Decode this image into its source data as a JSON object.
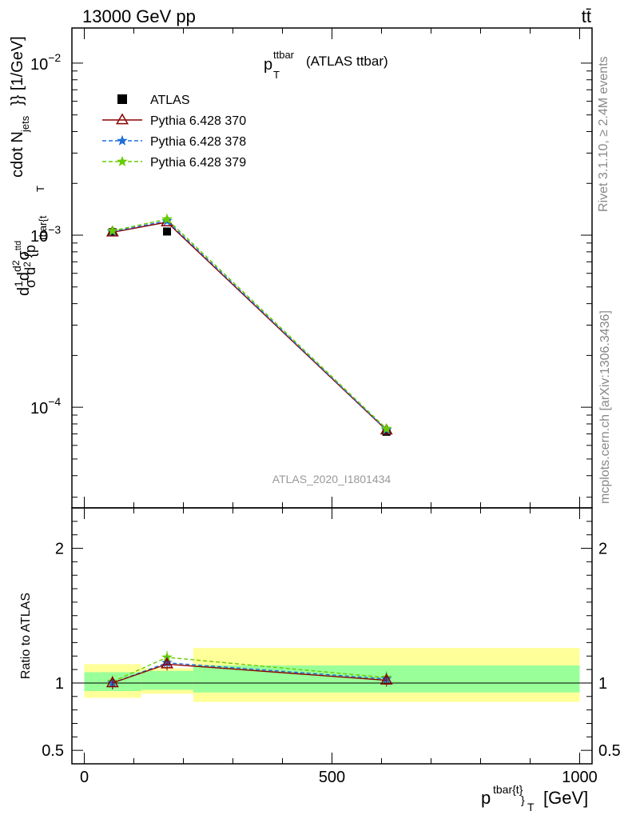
{
  "header": {
    "left": "13000 GeV pp",
    "right": "tt̄"
  },
  "side_text": {
    "rivet": "Rivet 3.1.10, ≥ 2.4M events",
    "mcplots": "mcplots.cern.ch [arXiv:1306.3436]"
  },
  "chart_data": {
    "type": "line",
    "title": "p_T^ttbar (ATLAS ttbar)",
    "title_main": "p",
    "title_sub": "T",
    "title_sup": "ttbar",
    "title_rest": "(ATLAS ttbar)",
    "analysis_label": "ATLAS_2020_I1801434",
    "xlabel": "p^{tbar{t}}_T [GeV]",
    "xlabel_main": "p",
    "xlabel_sup": "tbar{t}",
    "xlabel_sub": "}",
    "xlabel_subT": "T",
    "xlabel_unit": "[GeV]",
    "ylabel_main": "dσ/dp_T [1/GeV] (rendered as garbled TeX: 1/σ d²σ^{tbar{t}} / d² {p_T^{tbar{t}}} cdot N_{jets}}} [1/GeV])",
    "ylabel_ratio": "Ratio to ATLAS",
    "xlim": [
      -25,
      1025
    ],
    "ylim_main": [
      2.6e-05,
      0.016
    ],
    "ylim_ratio": [
      0.4,
      2.3
    ],
    "xscale": "linear",
    "yscale_main": "log",
    "x_ticks": [
      "0",
      "500",
      "1000"
    ],
    "x_tick_values": [
      0,
      500,
      1000
    ],
    "y_ticks_main": [
      {
        "value": 0.01,
        "base": "10",
        "exp": "−2"
      },
      {
        "value": 0.001,
        "base": "10",
        "exp": "−3"
      },
      {
        "value": 0.0001,
        "base": "10",
        "exp": "−4"
      }
    ],
    "y_ticks_ratio": [
      {
        "value": 0.5,
        "label": "0.5"
      },
      {
        "value": 1,
        "label": "1"
      },
      {
        "value": 2,
        "label": "2"
      }
    ],
    "bins": [
      [
        0,
        115
      ],
      [
        115,
        220
      ],
      [
        220,
        1000
      ]
    ],
    "x": [
      57,
      167,
      610
    ],
    "data": {
      "name": "ATLAS",
      "values": [
        0.00104,
        0.00105,
        7.2e-05
      ],
      "ratio_band_inner": [
        [
          0.94,
          1.08
        ],
        [
          0.95,
          1.09
        ],
        [
          0.93,
          1.13
        ]
      ],
      "ratio_band_outer": [
        [
          0.89,
          1.14
        ],
        [
          0.92,
          1.11
        ],
        [
          0.86,
          1.26
        ]
      ]
    },
    "series": [
      {
        "name": "Pythia 6.428 370",
        "color": "#8b0000",
        "marker": "triangle",
        "dash": "solid",
        "values": [
          0.00104,
          0.00119,
          7.35e-05
        ],
        "ratio": [
          1.0,
          1.14,
          1.02
        ]
      },
      {
        "name": "Pythia 6.428 378",
        "color": "#1e6fd9",
        "marker": "star",
        "dash": "dashed",
        "values": [
          0.00105,
          0.00121,
          7.4e-05
        ],
        "ratio": [
          1.0,
          1.15,
          1.03
        ]
      },
      {
        "name": "Pythia 6.428 379",
        "color": "#66cc00",
        "marker": "star",
        "dash": "dashed",
        "values": [
          0.00106,
          0.00124,
          7.5e-05
        ],
        "ratio": [
          1.01,
          1.19,
          1.04
        ]
      }
    ],
    "colors": {
      "band_inner": "#99ff99",
      "band_outer": "#ffff99",
      "axis": "#000000"
    },
    "legend_position": "top-left",
    "grid": false
  }
}
